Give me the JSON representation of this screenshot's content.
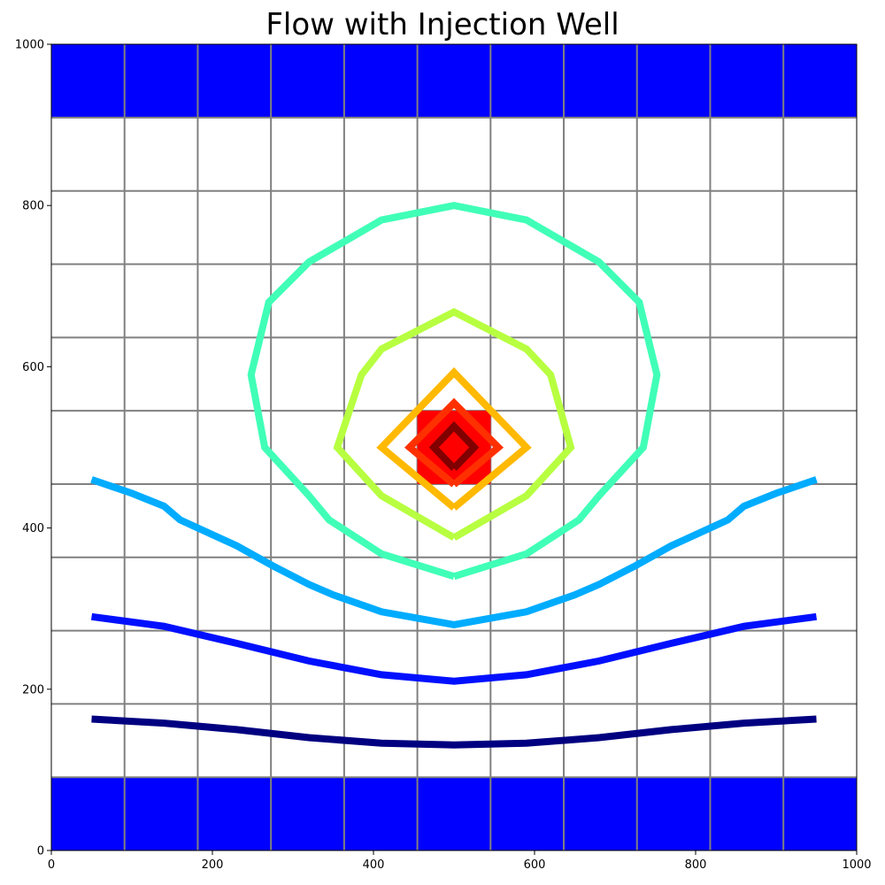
{
  "chart_data": {
    "type": "line",
    "title": "Flow with Injection Well",
    "xlabel": "",
    "ylabel": "",
    "xlim": [
      0,
      1000
    ],
    "ylim": [
      0,
      1000
    ],
    "x_ticks": [
      0,
      200,
      400,
      600,
      800,
      1000
    ],
    "y_ticks": [
      0,
      200,
      400,
      600,
      800,
      1000
    ],
    "grid": true,
    "grid_cell_size": 90.9,
    "grid_color": "#808080",
    "boundary_bands": [
      {
        "name": "top-boundary",
        "y0": 909.1,
        "y1": 1000,
        "color": "#0000ff"
      },
      {
        "name": "bottom-boundary",
        "y0": 0,
        "y1": 90.9,
        "color": "#0000ff"
      }
    ],
    "well": {
      "x0": 454.5,
      "x1": 545.5,
      "y0": 454.5,
      "y1": 545.5,
      "color": "#ff0000"
    },
    "series": [
      {
        "color": "#000080",
        "points": [
          [
            50,
            163
          ],
          [
            140,
            158
          ],
          [
            230,
            150
          ],
          [
            320,
            140
          ],
          [
            410,
            133
          ],
          [
            500,
            131
          ],
          [
            590,
            133
          ],
          [
            680,
            140
          ],
          [
            770,
            150
          ],
          [
            860,
            158
          ],
          [
            950,
            163
          ]
        ]
      },
      {
        "color": "#0010ff",
        "points": [
          [
            50,
            290
          ],
          [
            140,
            278
          ],
          [
            230,
            257
          ],
          [
            320,
            235
          ],
          [
            410,
            218
          ],
          [
            500,
            210
          ],
          [
            590,
            218
          ],
          [
            680,
            235
          ],
          [
            770,
            257
          ],
          [
            860,
            278
          ],
          [
            950,
            290
          ]
        ]
      },
      {
        "color": "#00acff",
        "points": [
          [
            50,
            460
          ],
          [
            100,
            443
          ],
          [
            140,
            427
          ],
          [
            160,
            410
          ],
          [
            230,
            378
          ],
          [
            275,
            353
          ],
          [
            320,
            330
          ],
          [
            350,
            317
          ],
          [
            410,
            296
          ],
          [
            500,
            280
          ],
          [
            590,
            296
          ],
          [
            650,
            317
          ],
          [
            680,
            330
          ],
          [
            725,
            353
          ],
          [
            770,
            378
          ],
          [
            840,
            410
          ],
          [
            860,
            427
          ],
          [
            900,
            443
          ],
          [
            950,
            460
          ]
        ]
      },
      {
        "color": "#40ffb7",
        "points": [
          [
            500,
            340
          ],
          [
            590,
            368
          ],
          [
            655,
            410
          ],
          [
            680,
            440
          ],
          [
            735,
            500
          ],
          [
            752,
            590
          ],
          [
            730,
            680
          ],
          [
            680,
            730
          ],
          [
            590,
            782
          ],
          [
            500,
            800
          ],
          [
            410,
            782
          ],
          [
            320,
            730
          ],
          [
            270,
            680
          ],
          [
            248,
            590
          ],
          [
            265,
            500
          ],
          [
            320,
            440
          ],
          [
            345,
            410
          ],
          [
            410,
            368
          ],
          [
            500,
            340
          ]
        ]
      },
      {
        "color": "#b7ff40",
        "points": [
          [
            500,
            388
          ],
          [
            590,
            440
          ],
          [
            645,
            500
          ],
          [
            620,
            590
          ],
          [
            590,
            622
          ],
          [
            500,
            668
          ],
          [
            410,
            622
          ],
          [
            385,
            590
          ],
          [
            355,
            500
          ],
          [
            410,
            440
          ],
          [
            500,
            388
          ]
        ]
      },
      {
        "color": "#ffb900",
        "points": [
          [
            500,
            425
          ],
          [
            590,
            500
          ],
          [
            500,
            593
          ],
          [
            410,
            500
          ],
          [
            500,
            425
          ]
        ]
      },
      {
        "color": "#ff3000",
        "points": [
          [
            500,
            454
          ],
          [
            555,
            500
          ],
          [
            500,
            555
          ],
          [
            445,
            500
          ],
          [
            500,
            454
          ]
        ]
      },
      {
        "color": "#800000",
        "points": [
          [
            500,
            474
          ],
          [
            525,
            500
          ],
          [
            500,
            526
          ],
          [
            475,
            500
          ],
          [
            500,
            474
          ]
        ]
      }
    ]
  }
}
